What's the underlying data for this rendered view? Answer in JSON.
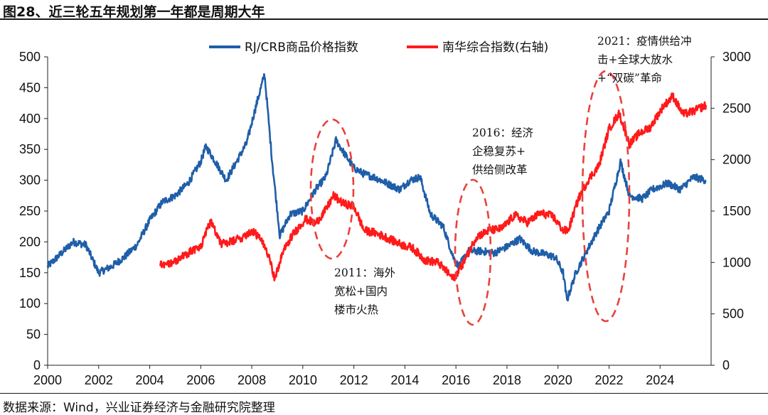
{
  "title": "图28、近三轮五年规划第一年都是周期大年",
  "source": "数据来源：Wind，兴业证券经济与金融研究院整理",
  "colors": {
    "series_left": "#1f5ea8",
    "series_right": "#ff1a1a",
    "ellipse": "#e8423c"
  },
  "chart_data": {
    "type": "line",
    "title": "图28、近三轮五年规划第一年都是周期大年",
    "x_ticks": [
      "2000",
      "2002",
      "2004",
      "2006",
      "2008",
      "2010",
      "2012",
      "2014",
      "2016",
      "2018",
      "2020",
      "2022",
      "2024"
    ],
    "xlim": [
      2000,
      2026
    ],
    "y_left": {
      "ticks": [
        "0",
        "50",
        "100",
        "150",
        "200",
        "250",
        "300",
        "350",
        "400",
        "450",
        "500"
      ],
      "ylim": [
        0,
        500
      ]
    },
    "y_right": {
      "ticks": [
        "0",
        "500",
        "1000",
        "1500",
        "2000",
        "2500",
        "3000"
      ],
      "ylim": [
        0,
        3000
      ]
    },
    "legend": [
      "RJ/CRB商品价格指数",
      "南华综合指数(右轴)"
    ],
    "series": [
      {
        "name": "RJ/CRB商品价格指数",
        "axis": "left",
        "color": "#1f5ea8",
        "points": [
          [
            2000,
            160
          ],
          [
            2000.5,
            180
          ],
          [
            2001,
            200
          ],
          [
            2001.5,
            195
          ],
          [
            2002,
            150
          ],
          [
            2002.5,
            160
          ],
          [
            2003,
            175
          ],
          [
            2003.5,
            195
          ],
          [
            2004,
            235
          ],
          [
            2004.5,
            265
          ],
          [
            2005,
            275
          ],
          [
            2005.5,
            295
          ],
          [
            2006,
            330
          ],
          [
            2006.2,
            355
          ],
          [
            2006.5,
            335
          ],
          [
            2007,
            300
          ],
          [
            2007.4,
            330
          ],
          [
            2007.8,
            360
          ],
          [
            2008.1,
            410
          ],
          [
            2008.5,
            472
          ],
          [
            2008.8,
            330
          ],
          [
            2009.1,
            210
          ],
          [
            2009.5,
            245
          ],
          [
            2010,
            250
          ],
          [
            2010.5,
            285
          ],
          [
            2010.9,
            305
          ],
          [
            2011.3,
            365
          ],
          [
            2011.6,
            345
          ],
          [
            2012,
            320
          ],
          [
            2012.4,
            310
          ],
          [
            2012.8,
            305
          ],
          [
            2013.3,
            295
          ],
          [
            2013.8,
            285
          ],
          [
            2014.2,
            300
          ],
          [
            2014.6,
            305
          ],
          [
            2015,
            245
          ],
          [
            2015.5,
            225
          ],
          [
            2015.9,
            175
          ],
          [
            2016.1,
            160
          ],
          [
            2016.5,
            185
          ],
          [
            2017,
            185
          ],
          [
            2017.5,
            182
          ],
          [
            2018,
            192
          ],
          [
            2018.5,
            205
          ],
          [
            2019,
            185
          ],
          [
            2019.5,
            180
          ],
          [
            2019.9,
            175
          ],
          [
            2020.2,
            150
          ],
          [
            2020.35,
            105
          ],
          [
            2020.7,
            150
          ],
          [
            2021,
            175
          ],
          [
            2021.5,
            215
          ],
          [
            2022,
            250
          ],
          [
            2022.45,
            330
          ],
          [
            2022.8,
            275
          ],
          [
            2023.3,
            270
          ],
          [
            2023.7,
            285
          ],
          [
            2024.3,
            295
          ],
          [
            2024.8,
            285
          ],
          [
            2025.3,
            305
          ],
          [
            2025.8,
            300
          ]
        ]
      },
      {
        "name": "南华综合指数(右轴)",
        "axis": "right",
        "color": "#ff1a1a",
        "points": [
          [
            2004.4,
            985
          ],
          [
            2004.8,
            990
          ],
          [
            2005.2,
            1040
          ],
          [
            2005.6,
            1110
          ],
          [
            2006,
            1150
          ],
          [
            2006.4,
            1410
          ],
          [
            2006.8,
            1180
          ],
          [
            2007.2,
            1200
          ],
          [
            2007.6,
            1240
          ],
          [
            2008,
            1310
          ],
          [
            2008.3,
            1240
          ],
          [
            2008.7,
            1060
          ],
          [
            2008.9,
            830
          ],
          [
            2009.2,
            1090
          ],
          [
            2009.6,
            1270
          ],
          [
            2010.1,
            1420
          ],
          [
            2010.5,
            1380
          ],
          [
            2010.9,
            1510
          ],
          [
            2011.2,
            1650
          ],
          [
            2011.6,
            1570
          ],
          [
            2012,
            1550
          ],
          [
            2012.4,
            1310
          ],
          [
            2012.8,
            1290
          ],
          [
            2013.3,
            1240
          ],
          [
            2013.8,
            1180
          ],
          [
            2014.3,
            1140
          ],
          [
            2014.8,
            1020
          ],
          [
            2015.3,
            1000
          ],
          [
            2015.9,
            840
          ],
          [
            2016.3,
            1000
          ],
          [
            2016.8,
            1250
          ],
          [
            2017.3,
            1310
          ],
          [
            2017.8,
            1330
          ],
          [
            2018.3,
            1460
          ],
          [
            2018.8,
            1390
          ],
          [
            2019.3,
            1480
          ],
          [
            2019.8,
            1450
          ],
          [
            2020.2,
            1310
          ],
          [
            2020.4,
            1310
          ],
          [
            2020.8,
            1620
          ],
          [
            2021.2,
            1810
          ],
          [
            2021.6,
            1940
          ],
          [
            2022,
            2300
          ],
          [
            2022.4,
            2450
          ],
          [
            2022.8,
            2150
          ],
          [
            2023.2,
            2260
          ],
          [
            2023.6,
            2310
          ],
          [
            2024.1,
            2510
          ],
          [
            2024.5,
            2620
          ],
          [
            2024.9,
            2440
          ],
          [
            2025.3,
            2470
          ],
          [
            2025.8,
            2530
          ]
        ]
      }
    ],
    "annotations": [
      {
        "lines": [
          "2011：海外",
          "宽松+国内",
          "楼市火热"
        ]
      },
      {
        "lines": [
          "2016：经济",
          "企稳复苏+",
          "供给侧改革"
        ]
      },
      {
        "lines": [
          "2021：疫情供给冲",
          "击+全球大放水",
          "+“双碳”革命"
        ]
      }
    ]
  }
}
